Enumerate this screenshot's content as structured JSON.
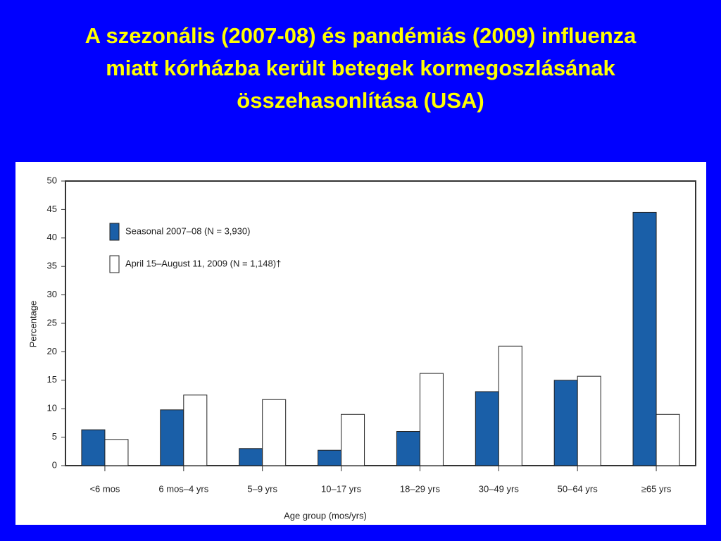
{
  "chart_data": {
    "type": "bar",
    "title": "A szezonális (2007-08) és pandémiás (2009) influenza miatt kórházba került betegek kormegoszlásának összehasonlítása (USA)",
    "categories": [
      "<6 mos",
      "6 mos–4 yrs",
      "5–9 yrs",
      "10–17 yrs",
      "18–29 yrs",
      "30–49 yrs",
      "50–64 yrs",
      "≥65 yrs"
    ],
    "series": [
      {
        "name": "Seasonal 2007–08 (N = 3,930)",
        "color": "#1a5fa8",
        "values": [
          6.3,
          9.8,
          3.0,
          2.7,
          6.0,
          13.0,
          15.0,
          44.5
        ]
      },
      {
        "name": "April 15–August 11, 2009 (N = 1,148)†",
        "color": "#ffffff",
        "values": [
          4.6,
          12.4,
          11.6,
          9.0,
          16.2,
          21.0,
          15.7,
          9.0
        ]
      }
    ],
    "x_label": "Age group (mos/yrs)",
    "y_label": "Percentage",
    "ylim": [
      0,
      50
    ],
    "yticks": [
      0,
      5,
      10,
      15,
      20,
      25,
      30,
      35,
      40,
      45,
      50
    ],
    "legend": "upper-left"
  }
}
